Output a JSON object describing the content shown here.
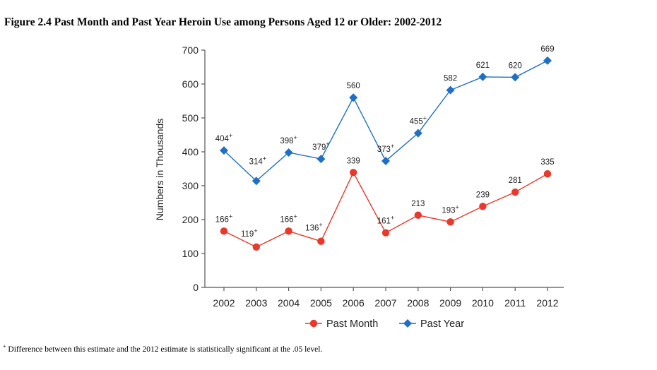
{
  "title": "Figure 2.4 Past Month and Past Year Heroin Use among Persons Aged 12 or Older: 2002-2012",
  "footnote": {
    "marker": "+",
    "text": "Difference between this estimate and the 2012 estimate is statistically significant at the .05 level."
  },
  "chart_data": {
    "type": "line",
    "categories": [
      "2002",
      "2003",
      "2004",
      "2005",
      "2006",
      "2007",
      "2008",
      "2009",
      "2010",
      "2011",
      "2012"
    ],
    "ylabel": "Numbers in Thousands",
    "xlabel": "",
    "ylim": [
      0,
      700
    ],
    "yticks": [
      0,
      100,
      200,
      300,
      400,
      500,
      600,
      700
    ],
    "grid": false,
    "legend_position": "bottom",
    "significance_marker": "+",
    "series": [
      {
        "name": "Past Month",
        "color": "#e8392c",
        "marker": "circle",
        "values": [
          166,
          119,
          166,
          136,
          339,
          161,
          213,
          193,
          239,
          281,
          335
        ],
        "significant": [
          true,
          true,
          true,
          true,
          false,
          true,
          false,
          true,
          false,
          false,
          false
        ]
      },
      {
        "name": "Past Year",
        "color": "#1f6fc4",
        "marker": "diamond",
        "values": [
          404,
          314,
          398,
          379,
          560,
          373,
          455,
          582,
          621,
          620,
          669
        ],
        "significant": [
          true,
          true,
          true,
          true,
          false,
          true,
          true,
          false,
          false,
          false,
          false
        ]
      }
    ]
  }
}
